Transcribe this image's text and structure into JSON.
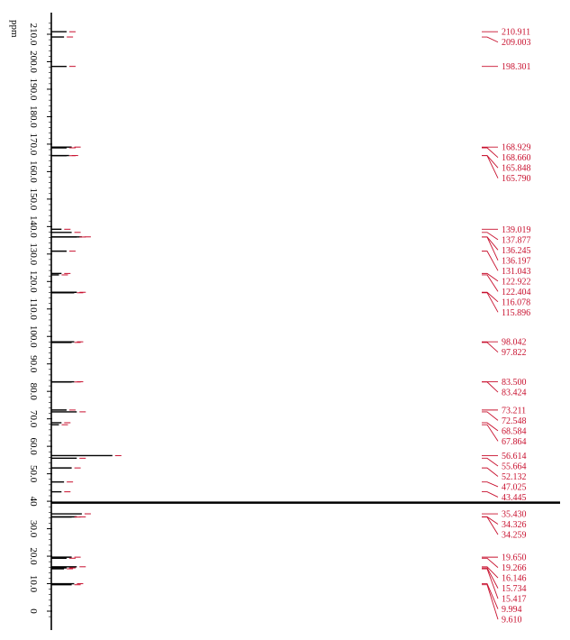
{
  "chart_data": {
    "type": "line",
    "title": "13C NMR spectrum",
    "xlabel": "ppm",
    "axis_unit_label": "ppm",
    "axis_range": [
      215,
      -3
    ],
    "axis_direction": "vertical, high ppm at top",
    "tick_labels": [
      "210.0",
      "200.0",
      "190.0",
      "180.0",
      "170.0",
      "160.0",
      "150.0",
      "140.0",
      "130.0",
      "120.0",
      "110.0",
      "100.0",
      "90.0",
      "80.0",
      "70.0",
      "60.0",
      "50.0",
      "40",
      "30.0",
      "20.0",
      "10.0",
      "0"
    ],
    "tick_values": [
      210,
      200,
      190,
      180,
      170,
      160,
      150,
      140,
      130,
      120,
      110,
      100,
      90,
      80,
      70,
      60,
      50,
      40,
      30,
      20,
      10,
      0
    ],
    "peak_labels": [
      "210.911",
      "209.003",
      "198.301",
      "168.929",
      "168.660",
      "165.848",
      "165.790",
      "139.019",
      "137.877",
      "136.245",
      "136.197",
      "131.043",
      "122.922",
      "122.404",
      "116.078",
      "115.896",
      "98.042",
      "97.822",
      "83.500",
      "83.424",
      "73.211",
      "72.548",
      "68.584",
      "67.864",
      "56.614",
      "55.664",
      "52.132",
      "47.025",
      "43.445",
      "35.430",
      "34.326",
      "34.259",
      "19.650",
      "19.266",
      "16.146",
      "15.734",
      "15.417",
      "9.994",
      "9.610"
    ],
    "peak_values": [
      210.911,
      209.003,
      198.301,
      168.929,
      168.66,
      165.848,
      165.79,
      139.019,
      137.877,
      136.245,
      136.197,
      131.043,
      122.922,
      122.404,
      116.078,
      115.896,
      98.042,
      97.822,
      83.5,
      83.424,
      73.211,
      72.548,
      68.584,
      67.864,
      56.614,
      55.664,
      52.132,
      47.025,
      43.445,
      35.43,
      34.326,
      34.259,
      19.65,
      19.266,
      16.146,
      15.734,
      15.417,
      9.994,
      9.61
    ],
    "signals": [
      {
        "ppm": 210.911,
        "intensity": 0.03
      },
      {
        "ppm": 209.003,
        "intensity": 0.025
      },
      {
        "ppm": 198.301,
        "intensity": 0.03
      },
      {
        "ppm": 168.929,
        "intensity": 0.04
      },
      {
        "ppm": 168.66,
        "intensity": 0.03
      },
      {
        "ppm": 165.848,
        "intensity": 0.035
      },
      {
        "ppm": 165.79,
        "intensity": 0.03
      },
      {
        "ppm": 139.019,
        "intensity": 0.02
      },
      {
        "ppm": 137.877,
        "intensity": 0.04
      },
      {
        "ppm": 136.245,
        "intensity": 0.06
      },
      {
        "ppm": 136.197,
        "intensity": 0.05
      },
      {
        "ppm": 131.043,
        "intensity": 0.03
      },
      {
        "ppm": 122.922,
        "intensity": 0.02
      },
      {
        "ppm": 122.404,
        "intensity": 0.015
      },
      {
        "ppm": 116.078,
        "intensity": 0.05
      },
      {
        "ppm": 115.896,
        "intensity": 0.045
      },
      {
        "ppm": 98.042,
        "intensity": 0.045
      },
      {
        "ppm": 97.822,
        "intensity": 0.04
      },
      {
        "ppm": 83.5,
        "intensity": 0.045
      },
      {
        "ppm": 83.424,
        "intensity": 0.04
      },
      {
        "ppm": 73.211,
        "intensity": 0.03
      },
      {
        "ppm": 72.548,
        "intensity": 0.05
      },
      {
        "ppm": 68.584,
        "intensity": 0.02
      },
      {
        "ppm": 67.864,
        "intensity": 0.015
      },
      {
        "ppm": 56.614,
        "intensity": 0.12
      },
      {
        "ppm": 55.664,
        "intensity": 0.05
      },
      {
        "ppm": 52.132,
        "intensity": 0.04
      },
      {
        "ppm": 47.025,
        "intensity": 0.025
      },
      {
        "ppm": 43.445,
        "intensity": 0.02
      },
      {
        "ppm": 39.5,
        "intensity": 1.0
      },
      {
        "ppm": 35.43,
        "intensity": 0.06
      },
      {
        "ppm": 34.326,
        "intensity": 0.05
      },
      {
        "ppm": 34.259,
        "intensity": 0.04
      },
      {
        "ppm": 19.65,
        "intensity": 0.04
      },
      {
        "ppm": 19.266,
        "intensity": 0.03
      },
      {
        "ppm": 16.146,
        "intensity": 0.05
      },
      {
        "ppm": 15.734,
        "intensity": 0.03
      },
      {
        "ppm": 15.417,
        "intensity": 0.025
      },
      {
        "ppm": 9.994,
        "intensity": 0.045
      },
      {
        "ppm": 9.61,
        "intensity": 0.04
      }
    ],
    "grid": false,
    "colors": {
      "trace": "#000000",
      "peak_label": "#c8102e",
      "axis": "#000000"
    }
  }
}
